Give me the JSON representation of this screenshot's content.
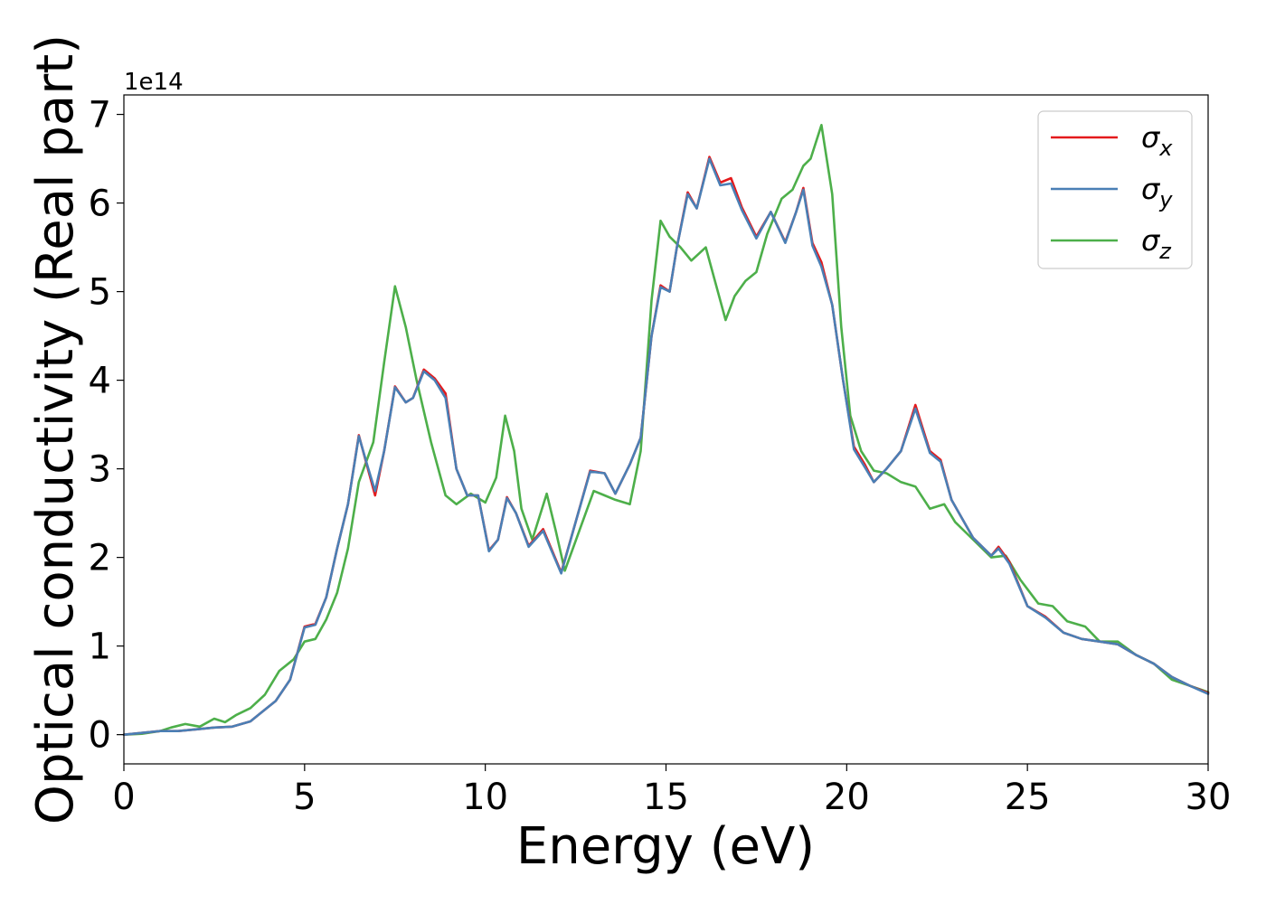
{
  "chart_data": {
    "type": "line",
    "title": "",
    "xlabel": "Energy (eV)",
    "ylabel": "Optical conductivity (Real part)",
    "y_offset_label": "1e14",
    "y_multiplier": 100000000000000.0,
    "xlim": [
      0,
      30
    ],
    "ylim": [
      -0.33,
      7.22
    ],
    "x_ticks": [
      0,
      5,
      10,
      15,
      20,
      25,
      30
    ],
    "y_ticks": [
      0,
      1,
      2,
      3,
      4,
      5,
      6,
      7
    ],
    "grid": false,
    "legend_position": "top-right",
    "series": [
      {
        "name": "σx",
        "legend_symbol": "σ",
        "legend_subscript": "x",
        "color": "#e41a1c",
        "points": [
          [
            0,
            0
          ],
          [
            0.5,
            0.02
          ],
          [
            1,
            0.04
          ],
          [
            1.5,
            0.04
          ],
          [
            2,
            0.06
          ],
          [
            2.5,
            0.08
          ],
          [
            3,
            0.09
          ],
          [
            3.5,
            0.15
          ],
          [
            3.8,
            0.25
          ],
          [
            4.2,
            0.38
          ],
          [
            4.6,
            0.62
          ],
          [
            5,
            1.22
          ],
          [
            5.3,
            1.25
          ],
          [
            5.6,
            1.55
          ],
          [
            5.9,
            2.1
          ],
          [
            6.2,
            2.6
          ],
          [
            6.5,
            3.38
          ],
          [
            6.75,
            3.0
          ],
          [
            6.95,
            2.7
          ],
          [
            7.2,
            3.2
          ],
          [
            7.5,
            3.93
          ],
          [
            7.8,
            3.75
          ],
          [
            8.0,
            3.8
          ],
          [
            8.3,
            4.12
          ],
          [
            8.6,
            4.02
          ],
          [
            8.9,
            3.85
          ],
          [
            9.2,
            3.0
          ],
          [
            9.5,
            2.7
          ],
          [
            9.8,
            2.7
          ],
          [
            10.1,
            2.08
          ],
          [
            10.35,
            2.2
          ],
          [
            10.6,
            2.68
          ],
          [
            10.85,
            2.5
          ],
          [
            11.2,
            2.13
          ],
          [
            11.6,
            2.32
          ],
          [
            12.1,
            1.83
          ],
          [
            12.5,
            2.4
          ],
          [
            12.9,
            2.98
          ],
          [
            13.3,
            2.95
          ],
          [
            13.6,
            2.72
          ],
          [
            14.0,
            3.05
          ],
          [
            14.3,
            3.35
          ],
          [
            14.6,
            4.5
          ],
          [
            14.85,
            5.07
          ],
          [
            15.1,
            5.0
          ],
          [
            15.3,
            5.5
          ],
          [
            15.6,
            6.12
          ],
          [
            15.85,
            5.94
          ],
          [
            16.2,
            6.52
          ],
          [
            16.5,
            6.23
          ],
          [
            16.8,
            6.28
          ],
          [
            17.1,
            5.95
          ],
          [
            17.5,
            5.62
          ],
          [
            17.9,
            5.9
          ],
          [
            18.3,
            5.56
          ],
          [
            18.6,
            5.9
          ],
          [
            18.8,
            6.17
          ],
          [
            19.05,
            5.55
          ],
          [
            19.3,
            5.33
          ],
          [
            19.6,
            4.85
          ],
          [
            19.9,
            4.0
          ],
          [
            20.2,
            3.25
          ],
          [
            20.5,
            3.05
          ],
          [
            20.75,
            2.85
          ],
          [
            21.1,
            3.0
          ],
          [
            21.5,
            3.2
          ],
          [
            21.9,
            3.72
          ],
          [
            22.3,
            3.2
          ],
          [
            22.6,
            3.1
          ],
          [
            22.9,
            2.65
          ],
          [
            23.5,
            2.22
          ],
          [
            24.0,
            2.02
          ],
          [
            24.2,
            2.12
          ],
          [
            24.5,
            1.95
          ],
          [
            25,
            1.45
          ],
          [
            25.5,
            1.33
          ],
          [
            26,
            1.15
          ],
          [
            26.5,
            1.08
          ],
          [
            27,
            1.05
          ],
          [
            27.5,
            1.02
          ],
          [
            28,
            0.9
          ],
          [
            28.5,
            0.8
          ],
          [
            29,
            0.65
          ],
          [
            29.5,
            0.55
          ],
          [
            30,
            0.47
          ]
        ]
      },
      {
        "name": "σy",
        "legend_symbol": "σ",
        "legend_subscript": "y",
        "color": "#4a7fb5",
        "points": [
          [
            0,
            0
          ],
          [
            0.5,
            0.02
          ],
          [
            1,
            0.04
          ],
          [
            1.5,
            0.04
          ],
          [
            2,
            0.06
          ],
          [
            2.5,
            0.08
          ],
          [
            3,
            0.09
          ],
          [
            3.5,
            0.15
          ],
          [
            3.8,
            0.25
          ],
          [
            4.2,
            0.38
          ],
          [
            4.6,
            0.62
          ],
          [
            5,
            1.21
          ],
          [
            5.3,
            1.24
          ],
          [
            5.6,
            1.55
          ],
          [
            5.9,
            2.1
          ],
          [
            6.2,
            2.6
          ],
          [
            6.5,
            3.37
          ],
          [
            6.75,
            3.02
          ],
          [
            6.95,
            2.75
          ],
          [
            7.2,
            3.2
          ],
          [
            7.5,
            3.92
          ],
          [
            7.8,
            3.75
          ],
          [
            8.0,
            3.8
          ],
          [
            8.3,
            4.1
          ],
          [
            8.6,
            4.0
          ],
          [
            8.9,
            3.8
          ],
          [
            9.2,
            3.0
          ],
          [
            9.5,
            2.7
          ],
          [
            9.8,
            2.7
          ],
          [
            10.1,
            2.07
          ],
          [
            10.35,
            2.2
          ],
          [
            10.6,
            2.67
          ],
          [
            10.85,
            2.5
          ],
          [
            11.2,
            2.12
          ],
          [
            11.6,
            2.3
          ],
          [
            12.1,
            1.82
          ],
          [
            12.5,
            2.4
          ],
          [
            12.9,
            2.97
          ],
          [
            13.3,
            2.95
          ],
          [
            13.6,
            2.72
          ],
          [
            14.0,
            3.05
          ],
          [
            14.3,
            3.35
          ],
          [
            14.6,
            4.5
          ],
          [
            14.85,
            5.05
          ],
          [
            15.1,
            5.0
          ],
          [
            15.3,
            5.5
          ],
          [
            15.6,
            6.1
          ],
          [
            15.85,
            5.94
          ],
          [
            16.2,
            6.5
          ],
          [
            16.5,
            6.2
          ],
          [
            16.8,
            6.22
          ],
          [
            17.1,
            5.92
          ],
          [
            17.5,
            5.6
          ],
          [
            17.9,
            5.9
          ],
          [
            18.3,
            5.55
          ],
          [
            18.6,
            5.9
          ],
          [
            18.8,
            6.15
          ],
          [
            19.05,
            5.52
          ],
          [
            19.3,
            5.28
          ],
          [
            19.6,
            4.85
          ],
          [
            19.9,
            4.0
          ],
          [
            20.2,
            3.22
          ],
          [
            20.5,
            3.02
          ],
          [
            20.75,
            2.85
          ],
          [
            21.1,
            3.0
          ],
          [
            21.5,
            3.2
          ],
          [
            21.9,
            3.68
          ],
          [
            22.3,
            3.18
          ],
          [
            22.6,
            3.08
          ],
          [
            22.9,
            2.65
          ],
          [
            23.5,
            2.22
          ],
          [
            24.0,
            2.02
          ],
          [
            24.2,
            2.1
          ],
          [
            24.5,
            1.93
          ],
          [
            25,
            1.45
          ],
          [
            25.5,
            1.32
          ],
          [
            26,
            1.15
          ],
          [
            26.5,
            1.08
          ],
          [
            27,
            1.05
          ],
          [
            27.5,
            1.02
          ],
          [
            28,
            0.9
          ],
          [
            28.5,
            0.8
          ],
          [
            29,
            0.65
          ],
          [
            29.5,
            0.55
          ],
          [
            30,
            0.46
          ]
        ]
      },
      {
        "name": "σz",
        "legend_symbol": "σ",
        "legend_subscript": "z",
        "color": "#4daf4a",
        "points": [
          [
            0,
            0
          ],
          [
            0.5,
            0.01
          ],
          [
            1,
            0.04
          ],
          [
            1.3,
            0.08
          ],
          [
            1.7,
            0.12
          ],
          [
            2.1,
            0.09
          ],
          [
            2.5,
            0.18
          ],
          [
            2.8,
            0.14
          ],
          [
            3.1,
            0.22
          ],
          [
            3.5,
            0.3
          ],
          [
            3.9,
            0.45
          ],
          [
            4.3,
            0.72
          ],
          [
            4.7,
            0.85
          ],
          [
            5.0,
            1.05
          ],
          [
            5.3,
            1.08
          ],
          [
            5.6,
            1.3
          ],
          [
            5.9,
            1.6
          ],
          [
            6.2,
            2.1
          ],
          [
            6.5,
            2.85
          ],
          [
            6.9,
            3.3
          ],
          [
            7.2,
            4.2
          ],
          [
            7.5,
            5.06
          ],
          [
            7.8,
            4.6
          ],
          [
            8.1,
            4.0
          ],
          [
            8.5,
            3.3
          ],
          [
            8.9,
            2.7
          ],
          [
            9.2,
            2.6
          ],
          [
            9.6,
            2.72
          ],
          [
            10.0,
            2.62
          ],
          [
            10.3,
            2.9
          ],
          [
            10.55,
            3.6
          ],
          [
            10.8,
            3.2
          ],
          [
            11.0,
            2.55
          ],
          [
            11.3,
            2.2
          ],
          [
            11.7,
            2.72
          ],
          [
            11.95,
            2.3
          ],
          [
            12.2,
            1.85
          ],
          [
            12.6,
            2.3
          ],
          [
            13.0,
            2.75
          ],
          [
            13.3,
            2.7
          ],
          [
            13.6,
            2.65
          ],
          [
            14.0,
            2.6
          ],
          [
            14.3,
            3.2
          ],
          [
            14.6,
            4.9
          ],
          [
            14.85,
            5.8
          ],
          [
            15.1,
            5.62
          ],
          [
            15.4,
            5.5
          ],
          [
            15.7,
            5.35
          ],
          [
            16.1,
            5.5
          ],
          [
            16.4,
            5.05
          ],
          [
            16.65,
            4.68
          ],
          [
            16.9,
            4.95
          ],
          [
            17.2,
            5.12
          ],
          [
            17.5,
            5.22
          ],
          [
            17.8,
            5.65
          ],
          [
            18.2,
            6.05
          ],
          [
            18.5,
            6.15
          ],
          [
            18.8,
            6.42
          ],
          [
            19.0,
            6.5
          ],
          [
            19.3,
            6.88
          ],
          [
            19.6,
            6.1
          ],
          [
            19.85,
            4.6
          ],
          [
            20.1,
            3.6
          ],
          [
            20.4,
            3.2
          ],
          [
            20.75,
            2.98
          ],
          [
            21.1,
            2.95
          ],
          [
            21.5,
            2.85
          ],
          [
            21.9,
            2.8
          ],
          [
            22.3,
            2.55
          ],
          [
            22.7,
            2.6
          ],
          [
            23.0,
            2.4
          ],
          [
            23.5,
            2.2
          ],
          [
            24.0,
            2.0
          ],
          [
            24.4,
            2.02
          ],
          [
            24.8,
            1.75
          ],
          [
            25.3,
            1.48
          ],
          [
            25.7,
            1.45
          ],
          [
            26.1,
            1.28
          ],
          [
            26.6,
            1.22
          ],
          [
            27.0,
            1.05
          ],
          [
            27.5,
            1.05
          ],
          [
            28.0,
            0.9
          ],
          [
            28.5,
            0.8
          ],
          [
            29,
            0.62
          ],
          [
            29.5,
            0.55
          ],
          [
            30,
            0.48
          ]
        ]
      }
    ]
  }
}
